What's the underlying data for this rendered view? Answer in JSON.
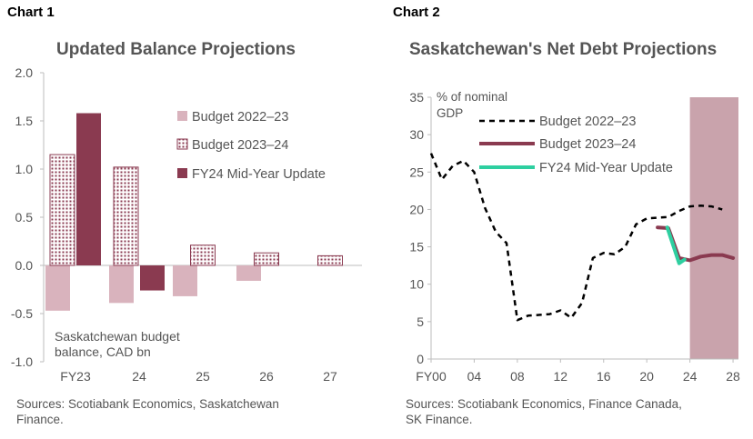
{
  "panels": {
    "left": {
      "label": "Chart 1",
      "title": "Updated Balance Projections",
      "note_lines": [
        "Saskatchewan budget",
        "balance, CAD bn"
      ],
      "source_lines": [
        "Sources: Scotiabank Economics, Saskatchewan",
        "Finance."
      ]
    },
    "right": {
      "label": "Chart 2",
      "title": "Saskatchewan's Net Debt Projections",
      "unit_lines": [
        "% of nominal",
        "GDP"
      ],
      "source_lines": [
        "Sources: Scotiabank Economics, Finance Canada,",
        "SK Finance."
      ]
    }
  },
  "chart_data": [
    {
      "type": "bar",
      "title": "Updated Balance Projections",
      "ylabel": "Saskatchewan budget balance, CAD bn",
      "ylim": [
        -1.0,
        2.0
      ],
      "yticks": [
        "2.0",
        "1.5",
        "1.0",
        "0.5",
        "0.0",
        "-0.5",
        "-1.0"
      ],
      "categories": [
        "FY23",
        "24",
        "25",
        "26",
        "27"
      ],
      "legend_position": "top-right",
      "series": [
        {
          "name": "Budget 2022–23",
          "color": "#d9b3bd",
          "pattern": "solid",
          "values": [
            -0.47,
            -0.39,
            -0.32,
            -0.16,
            null
          ]
        },
        {
          "name": "Budget 2023–24",
          "color": "#8a3a50",
          "pattern": "dotted",
          "values": [
            1.15,
            1.02,
            0.21,
            0.13,
            0.1
          ]
        },
        {
          "name": "FY24 Mid-Year Update",
          "color": "#8a3a50",
          "pattern": "solid",
          "values": [
            1.58,
            -0.26,
            null,
            null,
            null
          ]
        }
      ]
    },
    {
      "type": "line",
      "title": "Saskatchewan's Net Debt Projections",
      "ylabel": "% of nominal GDP",
      "ylim": [
        0,
        35
      ],
      "yticks": [
        "0",
        "5",
        "10",
        "15",
        "20",
        "25",
        "30",
        "35"
      ],
      "xlim": [
        2000,
        2028.5
      ],
      "xticks": [
        {
          "x": 2000,
          "label": "FY00"
        },
        {
          "x": 2004,
          "label": "04"
        },
        {
          "x": 2008,
          "label": "08"
        },
        {
          "x": 2012,
          "label": "12"
        },
        {
          "x": 2016,
          "label": "16"
        },
        {
          "x": 2020,
          "label": "20"
        },
        {
          "x": 2024,
          "label": "24"
        },
        {
          "x": 2028,
          "label": "28"
        }
      ],
      "projection_shading": [
        2024,
        2028.5
      ],
      "legend_position": "top-left",
      "series": [
        {
          "name": "Budget 2022–23",
          "color": "#000000",
          "style": "dashed",
          "x": [
            2000,
            2001,
            2002,
            2003,
            2004,
            2005,
            2006,
            2007,
            2008,
            2009,
            2010,
            2011,
            2012,
            2013,
            2014,
            2015,
            2016,
            2017,
            2018,
            2019,
            2020,
            2021,
            2022,
            2023,
            2024,
            2025,
            2026,
            2027
          ],
          "y": [
            27.5,
            24.0,
            25.8,
            26.5,
            25.0,
            20.2,
            17.0,
            15.5,
            5.2,
            5.8,
            5.9,
            6.0,
            6.5,
            5.5,
            7.5,
            13.5,
            14.2,
            14.0,
            15.0,
            18.0,
            18.8,
            18.9,
            19.0,
            19.8,
            20.4,
            20.5,
            20.4,
            20.0
          ]
        },
        {
          "name": "Budget 2023–24",
          "color": "#8a3a50",
          "style": "solid",
          "x": [
            2021,
            2022,
            2023,
            2024,
            2025,
            2026,
            2027,
            2028
          ],
          "y": [
            17.6,
            17.5,
            13.5,
            13.2,
            13.7,
            13.9,
            13.9,
            13.5
          ]
        },
        {
          "name": "FY24 Mid-Year Update",
          "color": "#2ecfa0",
          "style": "solid",
          "x": [
            2021.9,
            2023,
            2023.5
          ],
          "y": [
            17.6,
            12.8,
            13.3
          ]
        }
      ]
    }
  ]
}
